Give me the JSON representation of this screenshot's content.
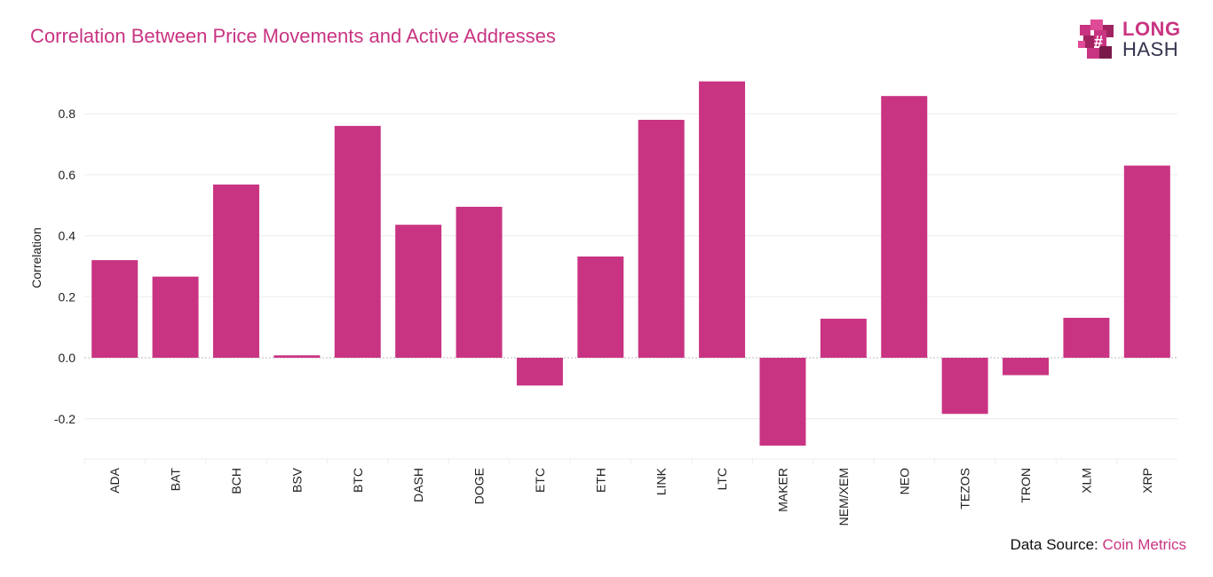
{
  "title": "Correlation Between Price Movements and Active Addresses",
  "logo": {
    "line1": "LONG",
    "line2": "HASH",
    "icon": "pixel-cube-hash-icon"
  },
  "footer": {
    "label": "Data Source:",
    "source": "Coin Metrics"
  },
  "colors": {
    "bar": "#c93482",
    "title": "#c93482",
    "grid": "#ececec",
    "zero_line": "#bbbbbb"
  },
  "chart_data": {
    "type": "bar",
    "title": "Correlation Between Price Movements and Active Addresses",
    "xlabel": "",
    "ylabel": "Correlation",
    "categories": [
      "ADA",
      "BAT",
      "BCH",
      "BSV",
      "BTC",
      "DASH",
      "DOGE",
      "ETC",
      "ETH",
      "LINK",
      "LTC",
      "MAKER",
      "NEM/XEM",
      "NEO",
      "TEZOS",
      "TRON",
      "XLM",
      "XRP"
    ],
    "values": [
      0.32,
      0.266,
      0.568,
      0.008,
      0.76,
      0.436,
      0.495,
      -0.091,
      0.332,
      0.78,
      0.906,
      -0.288,
      0.128,
      0.858,
      -0.184,
      -0.057,
      0.131,
      0.63
    ],
    "yticks": [
      "-0.2",
      "0.0",
      "0.2",
      "0.4",
      "0.6",
      "0.8"
    ],
    "ylim": [
      -0.32,
      0.94
    ],
    "grid": true,
    "legend": "none"
  }
}
